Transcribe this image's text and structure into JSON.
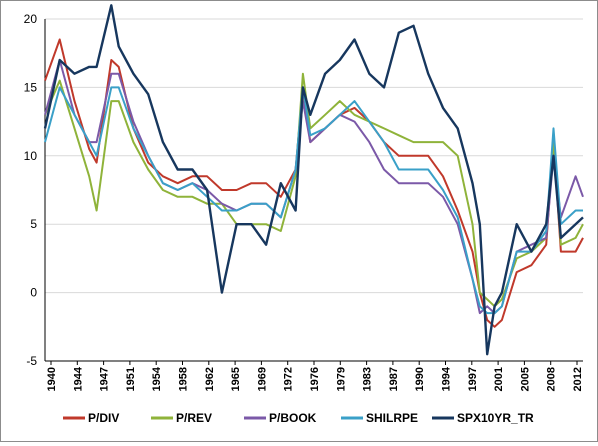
{
  "chart_data": {
    "type": "line",
    "title": "",
    "xlabel": "",
    "ylabel": "",
    "ylim": [
      -5,
      20
    ],
    "yticks": [
      -5,
      0,
      5,
      10,
      15,
      20
    ],
    "xlim": [
      1940,
      2013
    ],
    "xticks": [
      "1940",
      "1944",
      "1947",
      "1951",
      "1954",
      "1958",
      "1962",
      "1965",
      "1969",
      "1972",
      "1976",
      "1979",
      "1983",
      "1987",
      "1990",
      "1994",
      "1997",
      "2001",
      "2005",
      "2008",
      "2012"
    ],
    "grid": true,
    "legend_position": "bottom",
    "x": [
      1940,
      1942,
      1944,
      1946,
      1947,
      1949,
      1950,
      1952,
      1954,
      1956,
      1958,
      1960,
      1962,
      1964,
      1966,
      1968,
      1970,
      1972,
      1974,
      1975,
      1976,
      1978,
      1980,
      1982,
      1984,
      1986,
      1988,
      1990,
      1992,
      1994,
      1996,
      1998,
      1999,
      2000,
      2001,
      2002,
      2004,
      2006,
      2008,
      2009,
      2010,
      2012,
      2013
    ],
    "series": [
      {
        "name": "P/DIV",
        "color": "#c0392b",
        "values": [
          15.5,
          18.5,
          14,
          10.5,
          9.5,
          17,
          16.5,
          12,
          9.5,
          8.5,
          8,
          8.5,
          8.5,
          7.5,
          7.5,
          8,
          8,
          7,
          9,
          15,
          11,
          12,
          13,
          13.5,
          12.5,
          11,
          10,
          10,
          10,
          8.5,
          6,
          3,
          0,
          -2,
          -2.5,
          -2,
          1.5,
          2,
          3.5,
          11,
          3,
          3,
          4
        ]
      },
      {
        "name": "P/REV",
        "color": "#8fb33a",
        "values": [
          13,
          15.5,
          12,
          8.5,
          6,
          14,
          14,
          11,
          9,
          7.5,
          7,
          7,
          6.5,
          6.5,
          5,
          5,
          5,
          4.5,
          8.5,
          16,
          12,
          13,
          14,
          13,
          12.5,
          12,
          11.5,
          11,
          11,
          11,
          10,
          5,
          0,
          -0.5,
          -1,
          -0.5,
          2.5,
          3,
          4,
          11,
          3.5,
          4,
          5
        ]
      },
      {
        "name": "P/BOOK",
        "color": "#7b59a8",
        "values": [
          13,
          17,
          13,
          11,
          11,
          16,
          16,
          12.5,
          10,
          8,
          7.5,
          8,
          7.5,
          6.5,
          6,
          6.5,
          6.5,
          5.5,
          9,
          14,
          11,
          12,
          13,
          12.5,
          11,
          9,
          8,
          8,
          8,
          7,
          5,
          1,
          -1.5,
          -1,
          -1.5,
          -1,
          3,
          3.5,
          4,
          10,
          5.5,
          8.5,
          7
        ]
      },
      {
        "name": "SHILRPE",
        "color": "#3aa0c8",
        "values": [
          11,
          15,
          13,
          11,
          10,
          15,
          15,
          12,
          10,
          8,
          7.5,
          8,
          7,
          6,
          6,
          6.5,
          6.5,
          5.5,
          9,
          15,
          11.5,
          12,
          13,
          14,
          12.5,
          11,
          9,
          9,
          9,
          7.5,
          5.5,
          1,
          -1,
          -1.5,
          -1.5,
          -1,
          3,
          3,
          4.5,
          12,
          5,
          6,
          6
        ]
      },
      {
        "name": "SPX10YR_TR",
        "color": "#17375e",
        "values": [
          12,
          17,
          16,
          16.5,
          16.5,
          21,
          18,
          16,
          14.5,
          11,
          9,
          9,
          7.5,
          0,
          5,
          5,
          3.5,
          8,
          6,
          15,
          13,
          16,
          17,
          18.5,
          16,
          15,
          19,
          19.5,
          16,
          13.5,
          12,
          8,
          5,
          -4.5,
          -1,
          0,
          5,
          3,
          5,
          10,
          4,
          5,
          5.5
        ]
      }
    ]
  }
}
